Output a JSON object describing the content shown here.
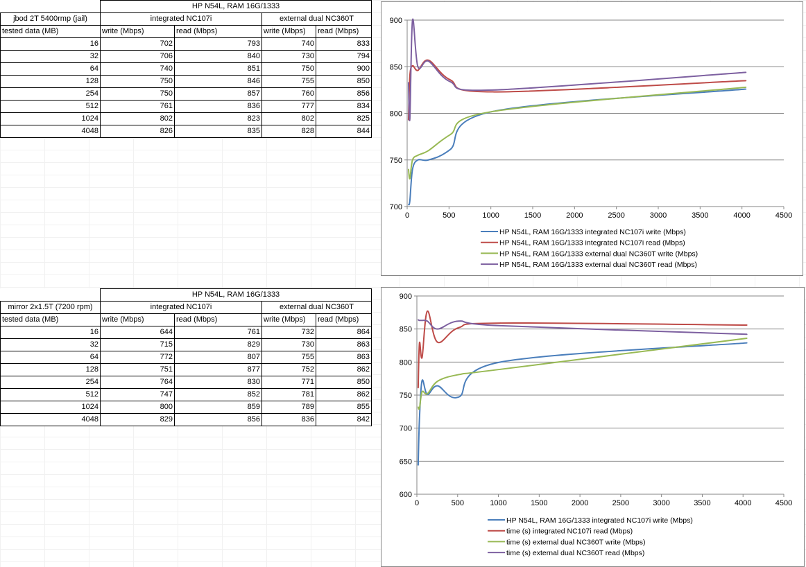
{
  "tables": [
    {
      "top": 0,
      "corner_label": "jbod 2T 5400rmp (jail)",
      "group_header": "HP N54L, RAM 16G/1333",
      "sub_headers": [
        "integrated NC107i",
        "external dual NC360T"
      ],
      "row_label_header": "tested data (MB)",
      "columns": [
        "write (Mbps)",
        "read (Mbps)",
        "write (Mbps)",
        "read (Mbps)"
      ],
      "rows": [
        [
          "16",
          "702",
          "793",
          "740",
          "833"
        ],
        [
          "32",
          "706",
          "840",
          "730",
          "794"
        ],
        [
          "64",
          "740",
          "851",
          "750",
          "900"
        ],
        [
          "128",
          "750",
          "846",
          "755",
          "850"
        ],
        [
          "254",
          "750",
          "857",
          "760",
          "856"
        ],
        [
          "512",
          "761",
          "836",
          "777",
          "834"
        ],
        [
          "1024",
          "802",
          "823",
          "802",
          "825"
        ],
        [
          "4048",
          "826",
          "835",
          "828",
          "844"
        ]
      ]
    },
    {
      "top": 416,
      "corner_label": "mirror 2x1.5T (7200 rpm)",
      "group_header": "HP N54L, RAM 16G/1333",
      "sub_headers": [
        "integrated NC107i",
        "external dual NC360T"
      ],
      "row_label_header": "tested data (MB)",
      "columns": [
        "write (Mbps)",
        "read (Mbps)",
        "write (Mbps)",
        "read (Mbps)"
      ],
      "rows": [
        [
          "16",
          "644",
          "761",
          "732",
          "864"
        ],
        [
          "32",
          "715",
          "829",
          "730",
          "863"
        ],
        [
          "64",
          "772",
          "807",
          "755",
          "863"
        ],
        [
          "128",
          "751",
          "877",
          "752",
          "862"
        ],
        [
          "254",
          "764",
          "830",
          "771",
          "850"
        ],
        [
          "512",
          "747",
          "852",
          "781",
          "862"
        ],
        [
          "1024",
          "800",
          "859",
          "789",
          "855"
        ],
        [
          "4048",
          "829",
          "856",
          "836",
          "842"
        ]
      ]
    }
  ],
  "chart_data": [
    {
      "type": "scatter-smooth",
      "x": [
        16,
        32,
        64,
        128,
        254,
        512,
        1024,
        4048
      ],
      "xlim": [
        0,
        4500
      ],
      "xticks": [
        0,
        500,
        1000,
        1500,
        2000,
        2500,
        3000,
        3500,
        4000,
        4500
      ],
      "ylim": [
        700,
        900
      ],
      "yticks": [
        700,
        750,
        800,
        850,
        900
      ],
      "legend_position": "bottom",
      "grid": true,
      "series": [
        {
          "name": "HP N54L, RAM 16G/1333 integrated NC107i write (Mbps)",
          "color": "#4a7ebb",
          "values": [
            702,
            706,
            740,
            750,
            750,
            761,
            802,
            826
          ]
        },
        {
          "name": "HP N54L, RAM 16G/1333 integrated NC107i read (Mbps)",
          "color": "#be4b48",
          "values": [
            793,
            840,
            851,
            846,
            857,
            836,
            823,
            835
          ]
        },
        {
          "name": "HP N54L, RAM 16G/1333 external dual NC360T write (Mbps)",
          "color": "#98b954",
          "values": [
            740,
            730,
            750,
            755,
            760,
            777,
            802,
            828
          ]
        },
        {
          "name": "HP N54L, RAM 16G/1333 external dual NC360T read (Mbps)",
          "color": "#7d60a0",
          "values": [
            833,
            794,
            900,
            850,
            856,
            834,
            825,
            844
          ]
        }
      ]
    },
    {
      "type": "scatter-smooth",
      "x": [
        16,
        32,
        64,
        128,
        254,
        512,
        1024,
        4048
      ],
      "xlim": [
        0,
        4500
      ],
      "xticks": [
        0,
        500,
        1000,
        1500,
        2000,
        2500,
        3000,
        3500,
        4000,
        4500
      ],
      "ylim": [
        600,
        900
      ],
      "yticks": [
        600,
        650,
        700,
        750,
        800,
        850,
        900
      ],
      "legend_position": "bottom",
      "grid": true,
      "series": [
        {
          "name": "HP N54L, RAM 16G/1333 integrated NC107i write (Mbps)",
          "color": "#4a7ebb",
          "values": [
            644,
            715,
            772,
            751,
            764,
            747,
            800,
            829
          ]
        },
        {
          "name": "time (s) integrated NC107i read (Mbps)",
          "color": "#be4b48",
          "values": [
            761,
            829,
            807,
            877,
            830,
            852,
            859,
            856
          ]
        },
        {
          "name": "time (s) external dual NC360T write (Mbps)",
          "color": "#98b954",
          "values": [
            732,
            730,
            755,
            752,
            771,
            781,
            789,
            836
          ]
        },
        {
          "name": "time (s) external dual NC360T read (Mbps)",
          "color": "#7d60a0",
          "values": [
            864,
            863,
            863,
            862,
            850,
            862,
            855,
            842
          ]
        }
      ]
    }
  ]
}
